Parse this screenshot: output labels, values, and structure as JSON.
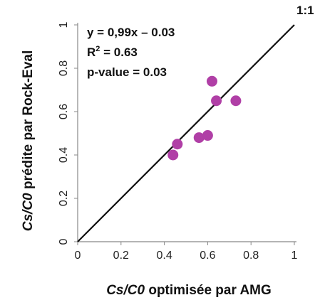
{
  "chart_data": {
    "type": "scatter",
    "xlim": [
      0,
      1
    ],
    "ylim": [
      0,
      1
    ],
    "x_ticks": [
      "0",
      "0.2",
      "0.4",
      "0.6",
      "0.8",
      "1"
    ],
    "y_ticks": [
      "0",
      "0.2",
      "0.4",
      "0.6",
      "0.8",
      "1"
    ],
    "xlabel_italic": "Cs/C0",
    "xlabel_rest": " optimisée par AMG",
    "ylabel_italic": "Cs/C0",
    "ylabel_rest": " prédite par Rock-Eval",
    "annotations": {
      "equation": "y = 0,99x – 0.03",
      "r2_prefix": "R",
      "r2_sup": "2",
      "r2_value": " = 0.63",
      "pvalue": "p-value = 0.03"
    },
    "reference_line": {
      "label": "1:1",
      "from": [
        0,
        0
      ],
      "to": [
        1,
        1
      ]
    },
    "points": [
      {
        "x": 0.44,
        "y": 0.4
      },
      {
        "x": 0.46,
        "y": 0.45
      },
      {
        "x": 0.56,
        "y": 0.48
      },
      {
        "x": 0.6,
        "y": 0.49
      },
      {
        "x": 0.62,
        "y": 0.74
      },
      {
        "x": 0.64,
        "y": 0.65
      },
      {
        "x": 0.73,
        "y": 0.65
      }
    ],
    "marker_color": "#b03fa6",
    "line_color": "#111111",
    "grid": false
  }
}
